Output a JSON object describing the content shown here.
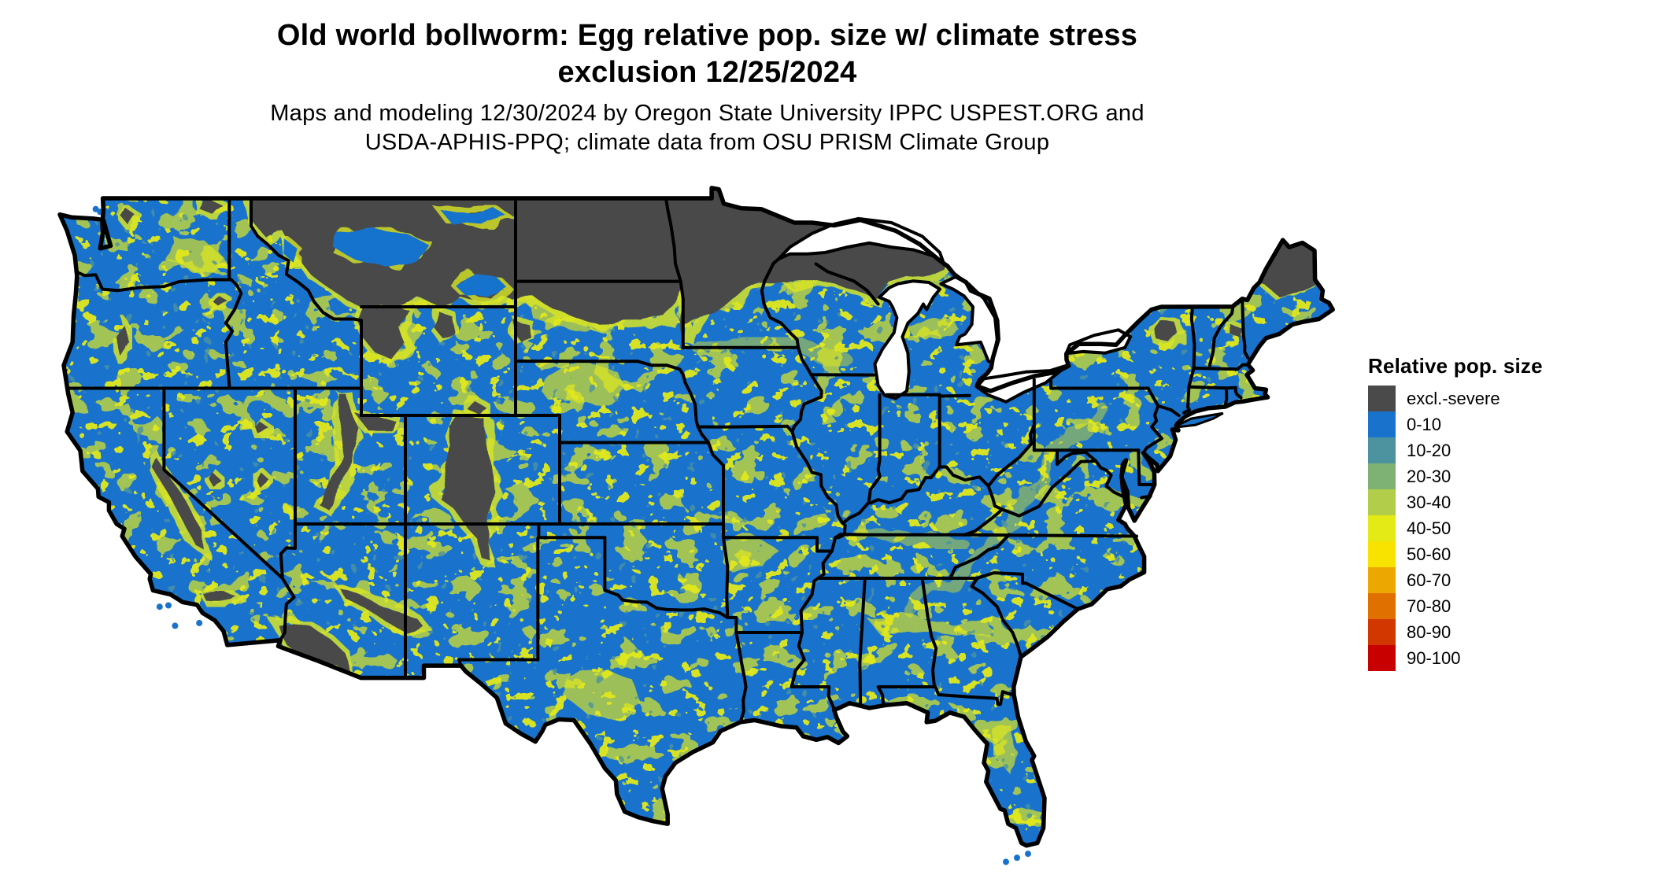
{
  "header": {
    "title_line1": "Old world bollworm: Egg relative pop. size w/ climate stress",
    "title_line2": "exclusion 12/25/2024",
    "subtitle_line1": "Maps and modeling 12/30/2024 by Oregon State University IPPC USPEST.ORG and",
    "subtitle_line2": "USDA-APHIS-PPQ; climate data from OSU PRISM Climate Group"
  },
  "legend": {
    "title": "Relative pop. size",
    "items": [
      {
        "label": "excl.-severe",
        "color": "#4a4a4a"
      },
      {
        "label": "0-10",
        "color": "#1973cd"
      },
      {
        "label": "10-20",
        "color": "#4c939f"
      },
      {
        "label": "20-30",
        "color": "#7db274"
      },
      {
        "label": "30-40",
        "color": "#b2cd49"
      },
      {
        "label": "40-50",
        "color": "#e4ea16"
      },
      {
        "label": "50-60",
        "color": "#f8e200"
      },
      {
        "label": "60-70",
        "color": "#eda800"
      },
      {
        "label": "70-80",
        "color": "#e07000"
      },
      {
        "label": "80-90",
        "color": "#d33700"
      },
      {
        "label": "90-100",
        "color": "#c80000"
      }
    ]
  },
  "map": {
    "colors": {
      "water_background": "#ffffff",
      "state_border": "#000000",
      "dominant_fill": "#1973cd",
      "exclusion_fill": "#4a4a4a",
      "mottle_yellow": "#e2e81a",
      "mottle_yellow_green": "#b2cd49",
      "mottle_teal": "#4c939f",
      "fringe_yellow": "#d8e426"
    }
  }
}
